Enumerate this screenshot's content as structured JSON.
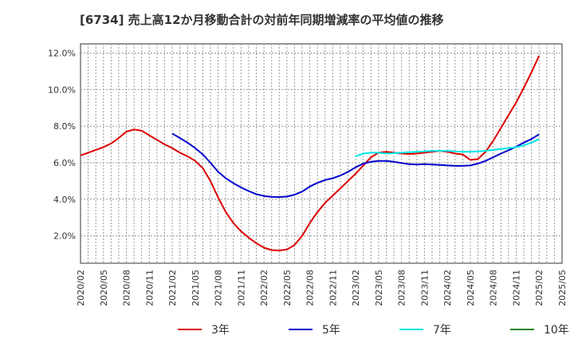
{
  "chart_data": {
    "type": "line",
    "title": "[6734]  売上高12か月移動合計の対前年同期増減率の平均値の推移",
    "xlabel": "",
    "ylabel": "",
    "x_tick_labels": [
      "2020/02",
      "2020/05",
      "2020/08",
      "2020/11",
      "2021/02",
      "2021/05",
      "2021/08",
      "2021/11",
      "2022/02",
      "2022/05",
      "2022/08",
      "2022/11",
      "2023/02",
      "2023/05",
      "2023/08",
      "2023/11",
      "2024/02",
      "2024/05",
      "2024/08",
      "2024/11",
      "2025/02",
      "2025/05"
    ],
    "x_range": [
      "2020/02",
      "2025/05"
    ],
    "y_tick_labels": [
      "2.0%",
      "4.0%",
      "6.0%",
      "8.0%",
      "10.0%",
      "12.0%"
    ],
    "y_ticks": [
      2,
      4,
      6,
      8,
      10,
      12
    ],
    "ylim": [
      0.5,
      12.5
    ],
    "grid": true,
    "legend_position": "bottom",
    "series": [
      {
        "name": "3年",
        "color": "#dd0000",
        "points": [
          [
            "2020/02",
            6.4
          ],
          [
            "2020/03",
            6.55
          ],
          [
            "2020/04",
            6.7
          ],
          [
            "2020/05",
            6.85
          ],
          [
            "2020/06",
            7.05
          ],
          [
            "2020/07",
            7.35
          ],
          [
            "2020/08",
            7.7
          ],
          [
            "2020/09",
            7.82
          ],
          [
            "2020/10",
            7.75
          ],
          [
            "2020/11",
            7.5
          ],
          [
            "2020/12",
            7.25
          ],
          [
            "2021/01",
            7.0
          ],
          [
            "2021/02",
            6.8
          ],
          [
            "2021/03",
            6.55
          ],
          [
            "2021/04",
            6.35
          ],
          [
            "2021/05",
            6.1
          ],
          [
            "2021/06",
            5.7
          ],
          [
            "2021/07",
            5.0
          ],
          [
            "2021/08",
            4.1
          ],
          [
            "2021/09",
            3.3
          ],
          [
            "2021/10",
            2.7
          ],
          [
            "2021/11",
            2.25
          ],
          [
            "2021/12",
            1.9
          ],
          [
            "2022/01",
            1.6
          ],
          [
            "2022/02",
            1.35
          ],
          [
            "2022/03",
            1.22
          ],
          [
            "2022/04",
            1.2
          ],
          [
            "2022/05",
            1.25
          ],
          [
            "2022/06",
            1.5
          ],
          [
            "2022/07",
            2.0
          ],
          [
            "2022/08",
            2.7
          ],
          [
            "2022/09",
            3.3
          ],
          [
            "2022/10",
            3.8
          ],
          [
            "2022/11",
            4.2
          ],
          [
            "2022/12",
            4.6
          ],
          [
            "2023/01",
            5.0
          ],
          [
            "2023/02",
            5.4
          ],
          [
            "2023/03",
            5.85
          ],
          [
            "2023/04",
            6.3
          ],
          [
            "2023/05",
            6.55
          ],
          [
            "2023/06",
            6.6
          ],
          [
            "2023/07",
            6.55
          ],
          [
            "2023/08",
            6.5
          ],
          [
            "2023/09",
            6.48
          ],
          [
            "2023/10",
            6.5
          ],
          [
            "2023/11",
            6.55
          ],
          [
            "2023/12",
            6.6
          ],
          [
            "2024/01",
            6.65
          ],
          [
            "2024/02",
            6.6
          ],
          [
            "2024/03",
            6.5
          ],
          [
            "2024/04",
            6.45
          ],
          [
            "2024/05",
            6.15
          ],
          [
            "2024/06",
            6.2
          ],
          [
            "2024/07",
            6.6
          ],
          [
            "2024/08",
            7.2
          ],
          [
            "2024/09",
            7.9
          ],
          [
            "2024/10",
            8.6
          ],
          [
            "2024/11",
            9.3
          ],
          [
            "2024/12",
            10.1
          ],
          [
            "2025/01",
            10.95
          ],
          [
            "2025/02",
            11.85
          ]
        ]
      },
      {
        "name": "5年",
        "color": "#0000cc",
        "points": [
          [
            "2021/02",
            7.6
          ],
          [
            "2021/03",
            7.35
          ],
          [
            "2021/04",
            7.1
          ],
          [
            "2021/05",
            6.8
          ],
          [
            "2021/06",
            6.45
          ],
          [
            "2021/07",
            6.0
          ],
          [
            "2021/08",
            5.5
          ],
          [
            "2021/09",
            5.15
          ],
          [
            "2021/10",
            4.88
          ],
          [
            "2021/11",
            4.65
          ],
          [
            "2021/12",
            4.45
          ],
          [
            "2022/01",
            4.28
          ],
          [
            "2022/02",
            4.18
          ],
          [
            "2022/03",
            4.13
          ],
          [
            "2022/04",
            4.12
          ],
          [
            "2022/05",
            4.15
          ],
          [
            "2022/06",
            4.25
          ],
          [
            "2022/07",
            4.42
          ],
          [
            "2022/08",
            4.7
          ],
          [
            "2022/09",
            4.9
          ],
          [
            "2022/10",
            5.05
          ],
          [
            "2022/11",
            5.15
          ],
          [
            "2022/12",
            5.3
          ],
          [
            "2023/01",
            5.5
          ],
          [
            "2023/02",
            5.75
          ],
          [
            "2023/03",
            5.95
          ],
          [
            "2023/04",
            6.05
          ],
          [
            "2023/05",
            6.1
          ],
          [
            "2023/06",
            6.1
          ],
          [
            "2023/07",
            6.05
          ],
          [
            "2023/08",
            5.98
          ],
          [
            "2023/09",
            5.92
          ],
          [
            "2023/10",
            5.9
          ],
          [
            "2023/11",
            5.92
          ],
          [
            "2023/12",
            5.9
          ],
          [
            "2024/01",
            5.88
          ],
          [
            "2024/02",
            5.85
          ],
          [
            "2024/03",
            5.83
          ],
          [
            "2024/04",
            5.83
          ],
          [
            "2024/05",
            5.85
          ],
          [
            "2024/06",
            5.95
          ],
          [
            "2024/07",
            6.1
          ],
          [
            "2024/08",
            6.3
          ],
          [
            "2024/09",
            6.5
          ],
          [
            "2024/10",
            6.68
          ],
          [
            "2024/11",
            6.88
          ],
          [
            "2024/12",
            7.1
          ],
          [
            "2025/01",
            7.3
          ],
          [
            "2025/02",
            7.55
          ]
        ]
      },
      {
        "name": "7年",
        "color": "#00e5e5",
        "points": [
          [
            "2023/02",
            6.35
          ],
          [
            "2023/03",
            6.5
          ],
          [
            "2023/04",
            6.55
          ],
          [
            "2023/05",
            6.55
          ],
          [
            "2023/06",
            6.5
          ],
          [
            "2023/07",
            6.52
          ],
          [
            "2023/08",
            6.55
          ],
          [
            "2023/09",
            6.58
          ],
          [
            "2023/10",
            6.6
          ],
          [
            "2023/11",
            6.62
          ],
          [
            "2023/12",
            6.65
          ],
          [
            "2024/01",
            6.65
          ],
          [
            "2024/02",
            6.65
          ],
          [
            "2024/03",
            6.62
          ],
          [
            "2024/04",
            6.6
          ],
          [
            "2024/05",
            6.6
          ],
          [
            "2024/06",
            6.62
          ],
          [
            "2024/07",
            6.65
          ],
          [
            "2024/08",
            6.7
          ],
          [
            "2024/09",
            6.75
          ],
          [
            "2024/10",
            6.8
          ],
          [
            "2024/11",
            6.85
          ],
          [
            "2024/12",
            6.95
          ],
          [
            "2025/01",
            7.1
          ],
          [
            "2025/02",
            7.3
          ]
        ]
      },
      {
        "name": "10年",
        "color": "#228822",
        "points": []
      }
    ]
  }
}
